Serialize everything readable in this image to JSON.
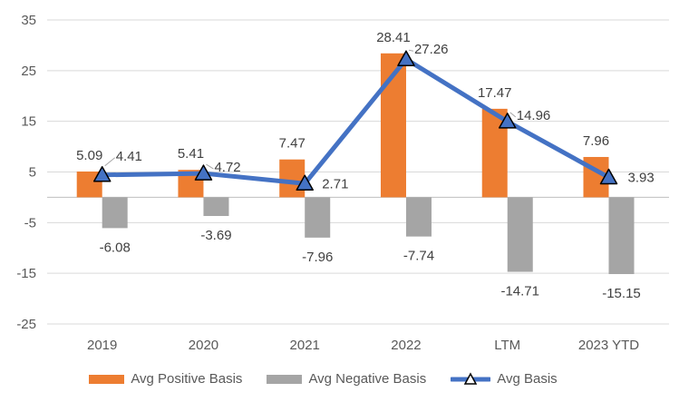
{
  "chart_data": {
    "type": "bar",
    "subtype": "combo-bar-line",
    "title": "",
    "xlabel": "",
    "ylabel": "",
    "categories": [
      "2019",
      "2020",
      "2021",
      "2022",
      "LTM",
      "2023 YTD"
    ],
    "series": [
      {
        "name": "Avg Positive Basis",
        "type": "bar",
        "color": "#ED7D31",
        "values": [
          5.09,
          5.41,
          7.47,
          28.41,
          17.47,
          7.96
        ]
      },
      {
        "name": "Avg Negative Basis",
        "type": "bar",
        "color": "#A5A5A5",
        "values": [
          -6.08,
          -3.69,
          -7.96,
          -7.74,
          -14.71,
          -15.15
        ]
      },
      {
        "name": "Avg Basis",
        "type": "line",
        "marker": "triangle",
        "color": "#4472C4",
        "values": [
          4.41,
          4.72,
          2.71,
          27.26,
          14.96,
          3.93
        ]
      }
    ],
    "y_axis": {
      "ticks": [
        35,
        25,
        15,
        5,
        -5,
        -15,
        -25
      ],
      "min": -25,
      "max": 35
    },
    "grid": true,
    "data_labels": true,
    "label_decimals": 2,
    "legend_position": "bottom",
    "colors": {
      "gridline": "#D9D9D9",
      "axis_line": "#BFBFBF",
      "axis_text": "#595959",
      "label_text": "#404040",
      "leader_line": "#A6A6A6",
      "marker_outline": "#000000",
      "legend_marker_fill": "#FFFFFF",
      "background": "#FFFFFF"
    }
  }
}
